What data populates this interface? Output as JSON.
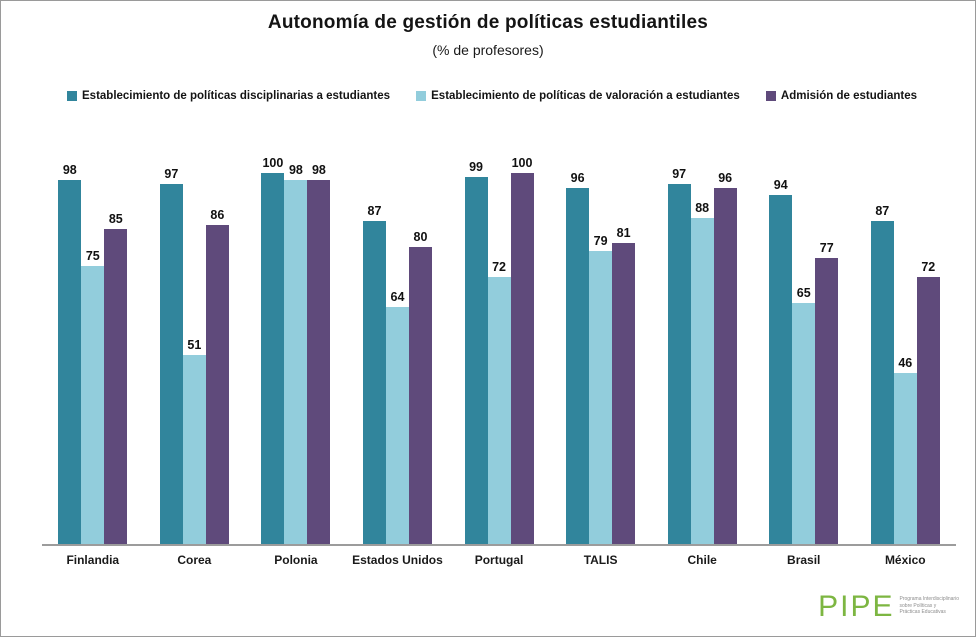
{
  "chart_data": {
    "type": "bar",
    "title": "Autonomía de gestión de políticas estudiantiles",
    "subtitle": "(% de profesores)",
    "categories": [
      "Finlandia",
      "Corea",
      "Polonia",
      "Estados Unidos",
      "Portugal",
      "TALIS",
      "Chile",
      "Brasil",
      "México"
    ],
    "series": [
      {
        "name": "Establecimiento de políticas disciplinarias a estudiantes",
        "color": "#31859C",
        "values": [
          98,
          97,
          100,
          87,
          99,
          96,
          97,
          94,
          87
        ]
      },
      {
        "name": "Establecimiento de políticas de valoración a estudiantes",
        "color": "#92CDDC",
        "values": [
          75,
          51,
          98,
          64,
          72,
          79,
          88,
          65,
          46
        ]
      },
      {
        "name": "Admisión de estudiantes",
        "color": "#5F4A7B",
        "values": [
          85,
          86,
          98,
          80,
          100,
          81,
          96,
          77,
          72
        ]
      }
    ],
    "ylim": [
      0,
      100
    ],
    "grid": false,
    "legend_position": "top",
    "value_labels": true,
    "axis_color": "#9c9c9c"
  },
  "logo": {
    "letters": [
      "P",
      "I",
      "P",
      "E"
    ],
    "color": "#7DB642",
    "tagline_lines": [
      "Programa Interdisciplinario",
      "sobre Políticas y",
      "Prácticas Educativas"
    ]
  }
}
